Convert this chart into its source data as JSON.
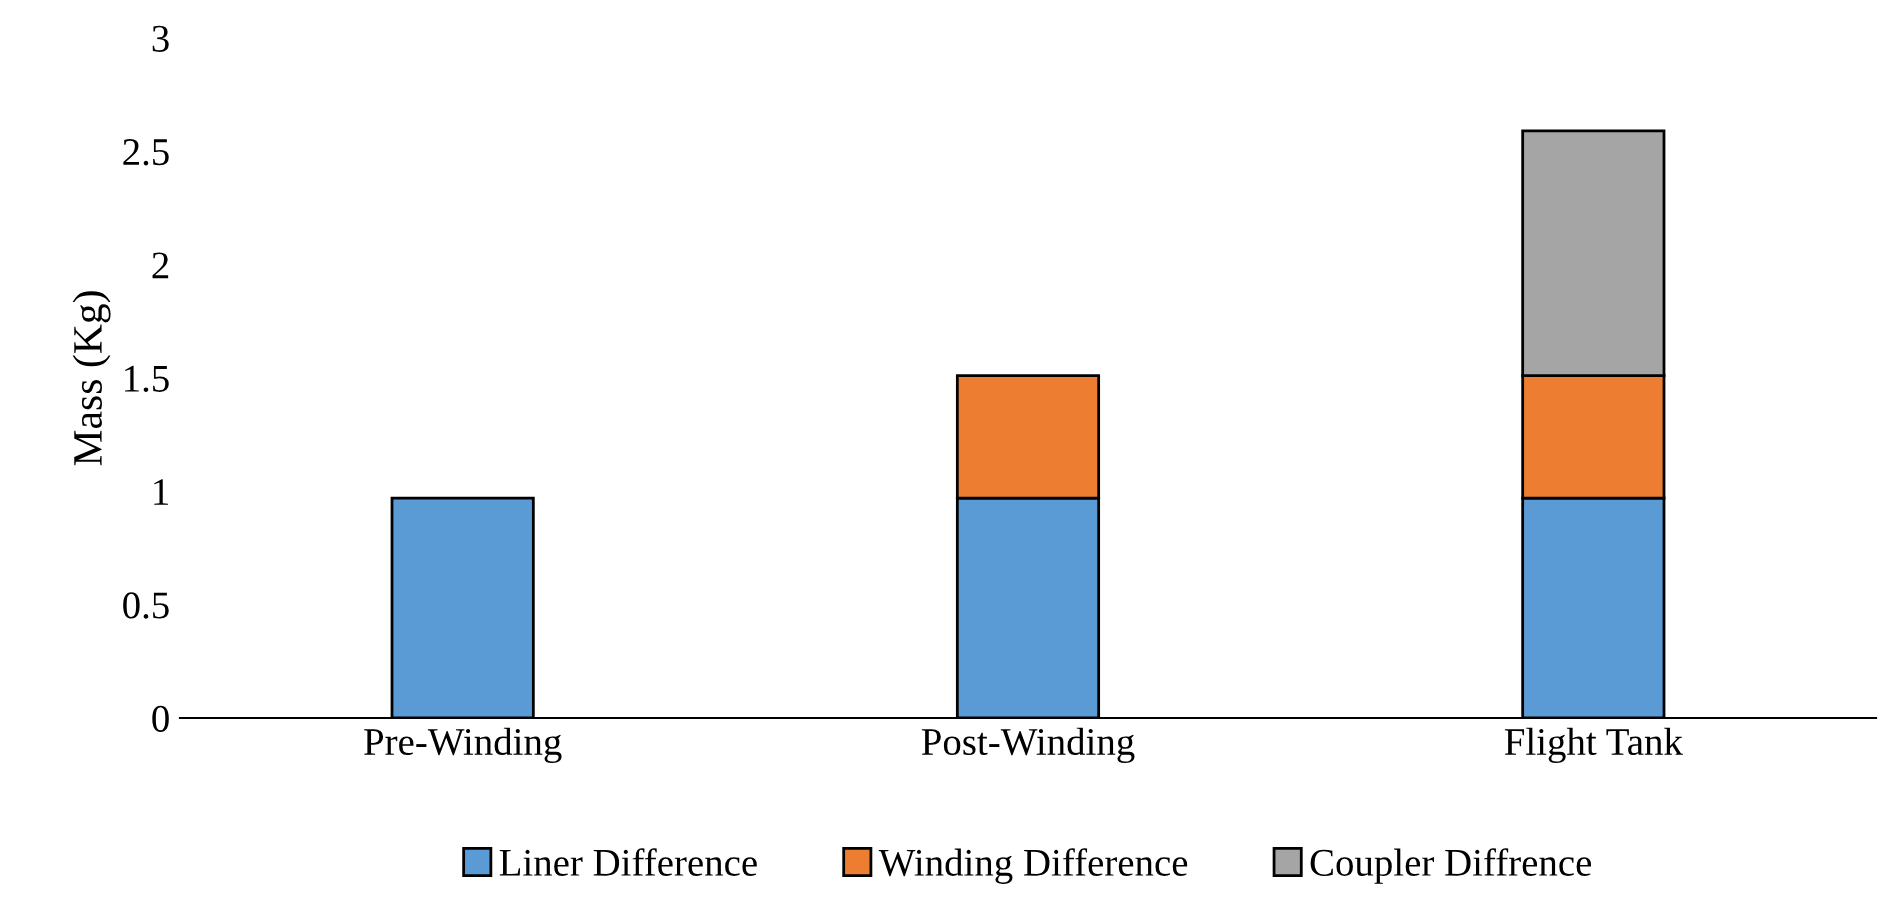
{
  "chart_data": {
    "type": "bar",
    "stacked": true,
    "ylabel": "Mass (Kg)",
    "categories": [
      "Pre-Winding",
      "Post-Winding",
      "Flight Tank"
    ],
    "series": [
      {
        "name": "Liner Difference",
        "color": "#5b9bd5",
        "values": [
          0.97,
          0.97,
          0.97
        ]
      },
      {
        "name": "Winding Difference",
        "color": "#ed7d31",
        "values": [
          null,
          0.54,
          0.54
        ]
      },
      {
        "name": "Coupler Diffrence",
        "color": "#a5a5a5",
        "values": [
          null,
          null,
          1.08
        ]
      }
    ],
    "ylim": [
      0,
      3
    ],
    "yticks": [
      0,
      0.5,
      1,
      1.5,
      2,
      2.5,
      3
    ],
    "grid": false,
    "legend": "bottom"
  }
}
